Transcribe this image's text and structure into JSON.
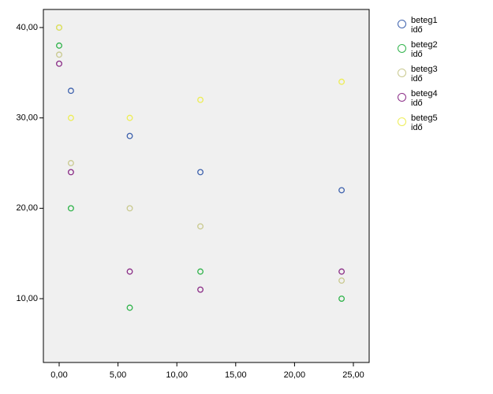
{
  "chart_data": {
    "type": "scatter",
    "xlim": [
      -1.34,
      26.34
    ],
    "ylim": [
      2.94,
      42.0
    ],
    "xticks": [
      {
        "value": 0,
        "label": "0,00"
      },
      {
        "value": 5,
        "label": "5,00"
      },
      {
        "value": 10,
        "label": "10,00"
      },
      {
        "value": 15,
        "label": "15,00"
      },
      {
        "value": 20,
        "label": "20,00"
      },
      {
        "value": 25,
        "label": "25,00"
      }
    ],
    "yticks": [
      {
        "value": 10,
        "label": "10,00"
      },
      {
        "value": 20,
        "label": "20,00"
      },
      {
        "value": 30,
        "label": "30,00"
      },
      {
        "value": 40,
        "label": "40,00"
      }
    ],
    "series": [
      {
        "name": "beteg1\nidő",
        "color": "#3e62ad",
        "x": [
          0,
          1,
          6,
          12,
          24
        ],
        "values": [
          40,
          33,
          28,
          24,
          22
        ]
      },
      {
        "name": "beteg2\nidő",
        "color": "#2fb34a",
        "x": [
          0,
          1,
          6,
          12,
          24
        ],
        "values": [
          38,
          20,
          9,
          13,
          10
        ]
      },
      {
        "name": "beteg3\nidő",
        "color": "#c9c98f",
        "x": [
          0,
          1,
          6,
          12,
          24
        ],
        "values": [
          37,
          25,
          20,
          18,
          12
        ]
      },
      {
        "name": "beteg4\nidő",
        "color": "#8a2c86",
        "x": [
          0,
          1,
          6,
          12,
          24
        ],
        "values": [
          36,
          24,
          13,
          11,
          13
        ]
      },
      {
        "name": "beteg5\nidő",
        "color": "#eded55",
        "x": [
          0,
          1,
          6,
          12,
          24
        ],
        "values": [
          40,
          30,
          30,
          32,
          34
        ]
      }
    ]
  }
}
